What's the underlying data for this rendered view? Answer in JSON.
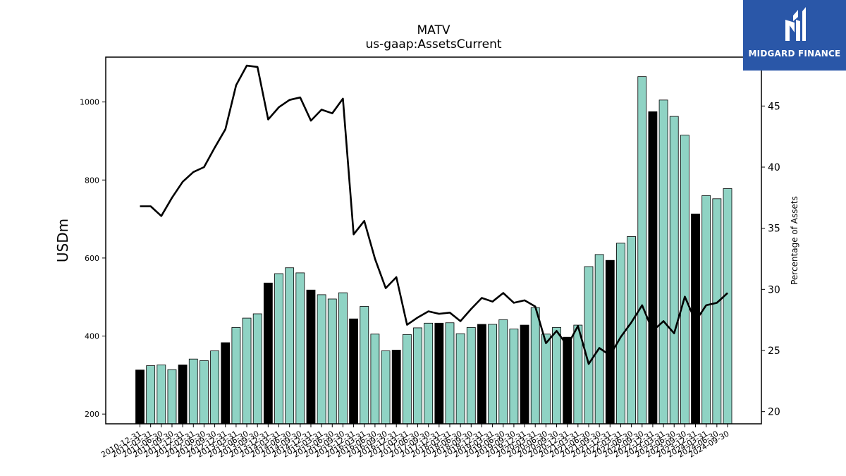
{
  "chart_data": {
    "type": "bar",
    "title": "MATV",
    "subtitle": "us-gaap:AssetsCurrent",
    "ylabel": "USDm",
    "y2label": "Percentage of Assets",
    "ylim": [
      175,
      1115
    ],
    "y2lim": [
      19,
      49
    ],
    "yticks": [
      200,
      400,
      600,
      800,
      1000
    ],
    "y2ticks": [
      20,
      25,
      30,
      35,
      40,
      45
    ],
    "bar_color": "#8fd3c4",
    "highlight_color": "#000000",
    "line_color": "#000000",
    "categories": [
      "2010-12-31",
      "2011-03-31",
      "2011-06-30",
      "2011-09-30",
      "2011-12-31",
      "2012-03-31",
      "2012-06-30",
      "2012-09-30",
      "2012-12-31",
      "2013-03-31",
      "2013-06-30",
      "2013-09-30",
      "2013-12-31",
      "2014-03-31",
      "2014-06-30",
      "2014-09-30",
      "2014-12-31",
      "2015-03-31",
      "2015-06-30",
      "2015-09-30",
      "2015-12-31",
      "2016-03-31",
      "2016-06-30",
      "2016-09-30",
      "2016-12-31",
      "2017-03-31",
      "2017-06-30",
      "2017-09-30",
      "2017-12-31",
      "2018-03-31",
      "2018-06-30",
      "2018-09-30",
      "2018-12-31",
      "2019-03-31",
      "2019-06-30",
      "2019-09-30",
      "2019-12-31",
      "2020-03-31",
      "2020-06-30",
      "2020-09-30",
      "2020-12-31",
      "2021-03-31",
      "2021-06-30",
      "2021-09-30",
      "2021-12-31",
      "2022-03-31",
      "2022-06-30",
      "2022-09-30",
      "2022-12-31",
      "2023-03-31",
      "2023-06-30",
      "2023-09-30",
      "2023-12-31",
      "2024-03-31",
      "2024-06-30",
      "2024-09-30"
    ],
    "series": [
      {
        "kind": "bar",
        "values": [
          313,
          324,
          326,
          314,
          326,
          341,
          337,
          362,
          383,
          422,
          446,
          457,
          536,
          560,
          575,
          562,
          518,
          506,
          495,
          511,
          444,
          476,
          405,
          362,
          364,
          404,
          421,
          433,
          433,
          434,
          406,
          422,
          430,
          430,
          442,
          418,
          428,
          473,
          405,
          422,
          397,
          428,
          578,
          609,
          594,
          638,
          655,
          1065,
          975,
          1005,
          963,
          915,
          713,
          760,
          752,
          778
        ],
        "highlighted": [
          true,
          false,
          false,
          false,
          true,
          false,
          false,
          false,
          true,
          false,
          false,
          false,
          true,
          false,
          false,
          false,
          true,
          false,
          false,
          false,
          true,
          false,
          false,
          false,
          true,
          false,
          false,
          false,
          true,
          false,
          false,
          false,
          true,
          false,
          false,
          false,
          true,
          false,
          false,
          false,
          true,
          false,
          false,
          false,
          true,
          false,
          false,
          false,
          true,
          false,
          false,
          false,
          true,
          false,
          false,
          false
        ]
      },
      {
        "kind": "line",
        "axis": "right",
        "values": [
          36.8,
          36.8,
          36.0,
          37.5,
          38.8,
          39.6,
          40.0,
          41.6,
          43.1,
          46.7,
          48.3,
          48.2,
          43.9,
          44.9,
          45.5,
          45.7,
          43.8,
          44.7,
          44.4,
          45.6,
          34.5,
          35.6,
          32.5,
          30.1,
          31.0,
          27.1,
          27.7,
          28.2,
          28.0,
          28.1,
          27.4,
          28.4,
          29.3,
          29.0,
          29.7,
          28.9,
          29.1,
          28.6,
          25.6,
          26.6,
          25.4,
          27.0,
          23.9,
          25.2,
          24.6,
          26.1,
          27.3,
          28.7,
          26.6,
          27.4,
          26.4,
          29.4,
          27.4,
          28.7,
          28.9,
          29.7
        ]
      }
    ]
  },
  "logo": {
    "text": "MIDGARD FINANCE",
    "icon": "midgard-mi-monogram-icon",
    "background": "#2a57a8"
  }
}
